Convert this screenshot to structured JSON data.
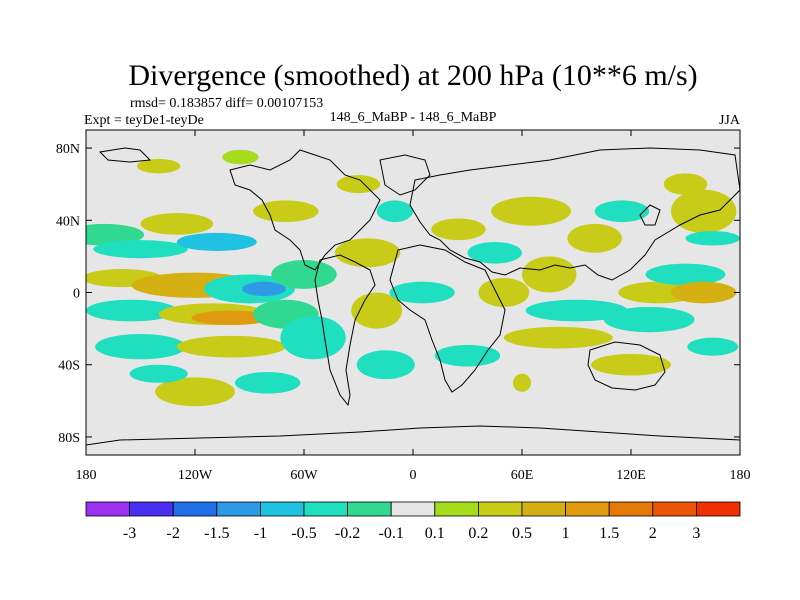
{
  "chart_data": {
    "type": "heatmap",
    "title": "Divergence (smoothed) at 200 hPa (10**6 m/s)",
    "stats": "rmsd= 0.183857 diff= 0.00107153",
    "left_label": "Expt = teyDe1-teyDe",
    "center_label": "148_6_MaBP - 148_6_MaBP",
    "right_label": "JJA",
    "xlim": [
      -180,
      180
    ],
    "ylim": [
      -90,
      90
    ],
    "x_ticks": [
      {
        "value": -180,
        "label": "180"
      },
      {
        "value": -120,
        "label": "120W"
      },
      {
        "value": -60,
        "label": "60W"
      },
      {
        "value": 0,
        "label": "0"
      },
      {
        "value": 60,
        "label": "60E"
      },
      {
        "value": 120,
        "label": "120E"
      },
      {
        "value": 180,
        "label": "180"
      }
    ],
    "y_ticks": [
      {
        "value": 80,
        "label": "80N"
      },
      {
        "value": 40,
        "label": "40N"
      },
      {
        "value": 0,
        "label": "0"
      },
      {
        "value": -40,
        "label": "40S"
      },
      {
        "value": -80,
        "label": "80S"
      }
    ],
    "colorbar": {
      "colors": [
        "#9b30f0",
        "#4a2ff0",
        "#1f6fe8",
        "#2e9ae6",
        "#1fc2e0",
        "#20dfc0",
        "#30d890",
        "#e6e6e6",
        "#a6dc1e",
        "#c8cc18",
        "#d4b012",
        "#e09a10",
        "#e67a08",
        "#ea5606",
        "#ee3004"
      ],
      "labels": [
        "-3",
        "-2",
        "-1.5",
        "-1",
        "-0.5",
        "-0.2",
        "-0.1",
        "0.1",
        "0.2",
        "0.5",
        "1",
        "1.5",
        "2",
        "3"
      ]
    },
    "anomalies": [
      {
        "lon": -170,
        "lat": 32,
        "rx": 22,
        "ry": 6,
        "level": 6
      },
      {
        "lon": -130,
        "lat": 38,
        "rx": 20,
        "ry": 6,
        "level": 9
      },
      {
        "lon": -150,
        "lat": 24,
        "rx": 26,
        "ry": 5,
        "level": 5
      },
      {
        "lon": -108,
        "lat": 28,
        "rx": 22,
        "ry": 5,
        "level": 4
      },
      {
        "lon": -160,
        "lat": 8,
        "rx": 22,
        "ry": 5,
        "level": 9
      },
      {
        "lon": -120,
        "lat": 4,
        "rx": 35,
        "ry": 7,
        "level": 10
      },
      {
        "lon": -90,
        "lat": 2,
        "rx": 25,
        "ry": 8,
        "level": 5
      },
      {
        "lon": -82,
        "lat": 2,
        "rx": 12,
        "ry": 4,
        "level": 3
      },
      {
        "lon": -60,
        "lat": 10,
        "rx": 18,
        "ry": 8,
        "level": 6
      },
      {
        "lon": -155,
        "lat": -10,
        "rx": 25,
        "ry": 6,
        "level": 5
      },
      {
        "lon": -110,
        "lat": -12,
        "rx": 30,
        "ry": 6,
        "level": 9
      },
      {
        "lon": -100,
        "lat": -14,
        "rx": 22,
        "ry": 4,
        "level": 11
      },
      {
        "lon": -70,
        "lat": -12,
        "rx": 18,
        "ry": 8,
        "level": 6
      },
      {
        "lon": -150,
        "lat": -30,
        "rx": 25,
        "ry": 7,
        "level": 5
      },
      {
        "lon": -100,
        "lat": -30,
        "rx": 30,
        "ry": 6,
        "level": 9
      },
      {
        "lon": -55,
        "lat": -25,
        "rx": 18,
        "ry": 12,
        "level": 5
      },
      {
        "lon": -120,
        "lat": -55,
        "rx": 22,
        "ry": 8,
        "level": 9
      },
      {
        "lon": -80,
        "lat": -50,
        "rx": 18,
        "ry": 6,
        "level": 5
      },
      {
        "lon": -140,
        "lat": 70,
        "rx": 12,
        "ry": 4,
        "level": 9
      },
      {
        "lon": -95,
        "lat": 75,
        "rx": 10,
        "ry": 4,
        "level": 8
      },
      {
        "lon": -70,
        "lat": 45,
        "rx": 18,
        "ry": 6,
        "level": 9
      },
      {
        "lon": -30,
        "lat": 60,
        "rx": 12,
        "ry": 5,
        "level": 9
      },
      {
        "lon": -25,
        "lat": 22,
        "rx": 18,
        "ry": 8,
        "level": 9
      },
      {
        "lon": -10,
        "lat": 45,
        "rx": 10,
        "ry": 6,
        "level": 5
      },
      {
        "lon": -20,
        "lat": -10,
        "rx": 14,
        "ry": 10,
        "level": 9
      },
      {
        "lon": -15,
        "lat": -40,
        "rx": 16,
        "ry": 8,
        "level": 5
      },
      {
        "lon": 5,
        "lat": 0,
        "rx": 18,
        "ry": 6,
        "level": 5
      },
      {
        "lon": 25,
        "lat": 35,
        "rx": 15,
        "ry": 6,
        "level": 9
      },
      {
        "lon": 45,
        "lat": 22,
        "rx": 15,
        "ry": 6,
        "level": 5
      },
      {
        "lon": 65,
        "lat": 45,
        "rx": 22,
        "ry": 8,
        "level": 9
      },
      {
        "lon": 50,
        "lat": 0,
        "rx": 14,
        "ry": 8,
        "level": 9
      },
      {
        "lon": 75,
        "lat": 10,
        "rx": 15,
        "ry": 10,
        "level": 9
      },
      {
        "lon": 100,
        "lat": 30,
        "rx": 15,
        "ry": 8,
        "level": 9
      },
      {
        "lon": 115,
        "lat": 45,
        "rx": 15,
        "ry": 6,
        "level": 5
      },
      {
        "lon": 90,
        "lat": -10,
        "rx": 28,
        "ry": 6,
        "level": 5
      },
      {
        "lon": 80,
        "lat": -25,
        "rx": 30,
        "ry": 6,
        "level": 9
      },
      {
        "lon": 135,
        "lat": 0,
        "rx": 22,
        "ry": 6,
        "level": 9
      },
      {
        "lon": 150,
        "lat": 10,
        "rx": 22,
        "ry": 6,
        "level": 5
      },
      {
        "lon": 160,
        "lat": 0,
        "rx": 18,
        "ry": 6,
        "level": 10
      },
      {
        "lon": 130,
        "lat": -15,
        "rx": 25,
        "ry": 7,
        "level": 5
      },
      {
        "lon": 120,
        "lat": -40,
        "rx": 22,
        "ry": 6,
        "level": 9
      },
      {
        "lon": 165,
        "lat": -30,
        "rx": 14,
        "ry": 5,
        "level": 5
      },
      {
        "lon": 160,
        "lat": 45,
        "rx": 18,
        "ry": 12,
        "level": 9
      },
      {
        "lon": 165,
        "lat": 30,
        "rx": 15,
        "ry": 4,
        "level": 5
      },
      {
        "lon": 150,
        "lat": 60,
        "rx": 12,
        "ry": 6,
        "level": 9
      },
      {
        "lon": 60,
        "lat": -50,
        "rx": 5,
        "ry": 5,
        "level": 9
      },
      {
        "lon": -140,
        "lat": -45,
        "rx": 16,
        "ry": 5,
        "level": 5
      },
      {
        "lon": 30,
        "lat": -35,
        "rx": 18,
        "ry": 6,
        "level": 5
      }
    ]
  }
}
